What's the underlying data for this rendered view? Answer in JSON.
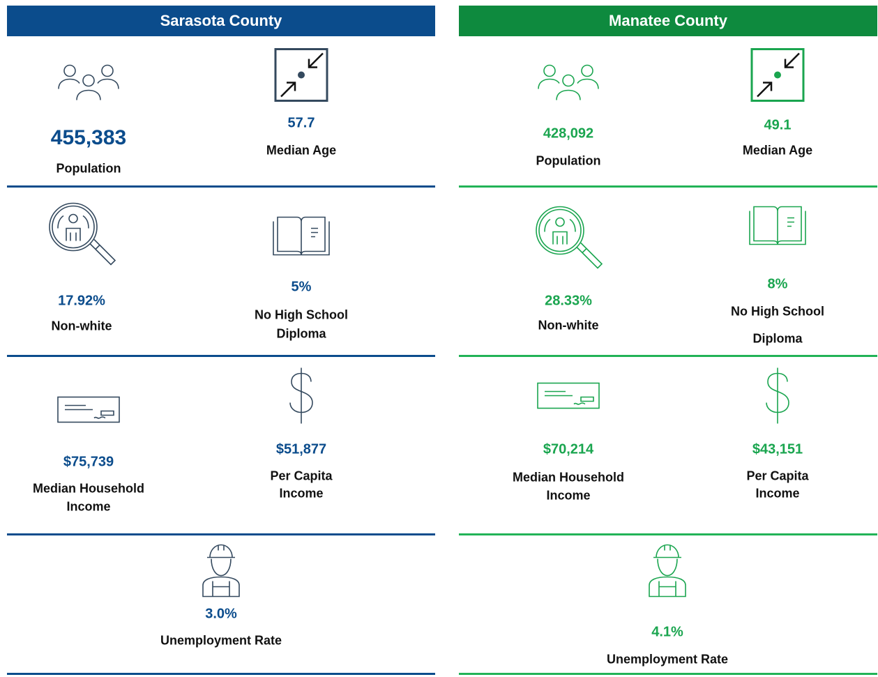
{
  "counties": [
    {
      "name": "Sarasota County",
      "stats": [
        {
          "value": "455,383",
          "label": [
            "Population"
          ]
        },
        {
          "value": "57.7",
          "label": [
            "Median Age"
          ]
        },
        {
          "value": "17.92%",
          "label": [
            "Non-white"
          ]
        },
        {
          "value": "5%",
          "label": [
            "No High School",
            "Diploma"
          ]
        },
        {
          "value": "$75,739",
          "label": [
            "Median Household",
            "Income"
          ]
        },
        {
          "value": "$51,877",
          "label": [
            "Per Capita",
            "Income"
          ]
        },
        {
          "value": "3.0%",
          "label": [
            "Unemployment Rate"
          ]
        }
      ]
    },
    {
      "name": "Manatee County",
      "stats": [
        {
          "value": "428,092",
          "label": [
            "Population"
          ]
        },
        {
          "value": "49.1",
          "label": [
            "Median Age"
          ]
        },
        {
          "value": "28.33%",
          "label": [
            "Non-white"
          ]
        },
        {
          "value": "8%",
          "label": [
            "No High School",
            "Diploma"
          ]
        },
        {
          "value": "$70,214",
          "label": [
            "Median Household",
            "Income"
          ]
        },
        {
          "value": "$43,151",
          "label": [
            "Per Capita",
            "Income"
          ]
        },
        {
          "value": "4.1%",
          "label": [
            "Unemployment Rate"
          ]
        }
      ]
    }
  ]
}
